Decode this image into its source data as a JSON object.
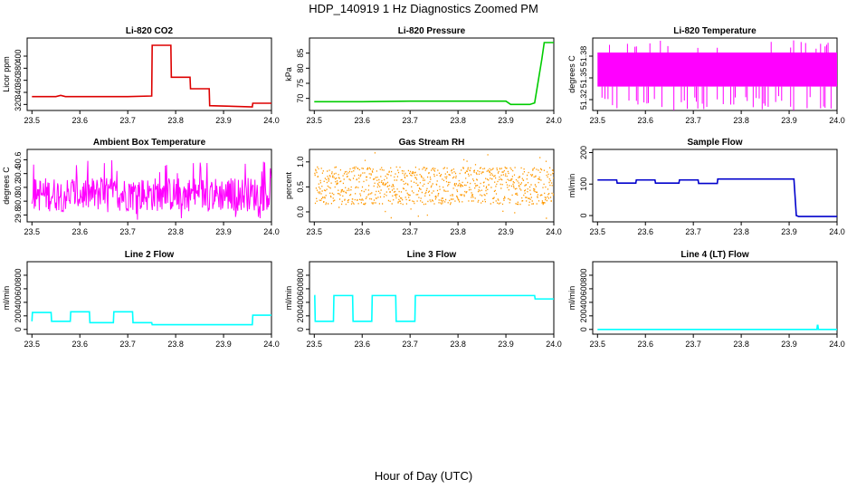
{
  "page": {
    "title": "HDP_140919  1 Hz Diagnostics Zoomed PM",
    "xlabel": "Hour of Day (UTC)"
  },
  "chart_data": [
    {
      "type": "line",
      "title": "Li-820 CO2",
      "ylabel": "Licor ppm",
      "color": "#dd0000",
      "xlim": [
        23.49,
        24.0
      ],
      "ylim": [
        310,
        430
      ],
      "xticks": [
        "23.5",
        "23.6",
        "23.7",
        "23.8",
        "23.9",
        "24.0"
      ],
      "yticks": [
        "320",
        "340",
        "360",
        "380",
        "400"
      ],
      "series": [
        {
          "x": [
            23.5,
            23.55,
            23.56,
            23.57,
            23.7,
            23.75,
            23.751,
            23.79,
            23.791,
            23.83,
            23.831,
            23.87,
            23.871,
            23.96,
            23.961,
            24.0
          ],
          "y": [
            333,
            333,
            335,
            333,
            333,
            334,
            418,
            418,
            365,
            365,
            346,
            346,
            318,
            316,
            322,
            322
          ]
        }
      ]
    },
    {
      "type": "line",
      "title": "Li-820 Pressure",
      "ylabel": "kPa",
      "color": "#00cc00",
      "xlim": [
        23.49,
        24.0
      ],
      "ylim": [
        66,
        90
      ],
      "xticks": [
        "23.5",
        "23.6",
        "23.7",
        "23.8",
        "23.9",
        "24.0"
      ],
      "yticks": [
        "70",
        "75",
        "80",
        "85"
      ],
      "series": [
        {
          "x": [
            23.5,
            23.6,
            23.7,
            23.9,
            23.91,
            23.95,
            23.96,
            23.975,
            23.98,
            24.0
          ],
          "y": [
            68.9,
            68.9,
            69.1,
            69.1,
            68.0,
            68.0,
            68.5,
            83,
            88.5,
            88.5
          ]
        }
      ]
    },
    {
      "type": "line",
      "title": "Li-820 Temperature",
      "ylabel": "degrees C",
      "color": "#ff00ff",
      "xlim": [
        23.49,
        24.0
      ],
      "ylim": [
        51.305,
        51.405
      ],
      "xticks": [
        "23.5",
        "23.6",
        "23.7",
        "23.8",
        "23.9",
        "24.0"
      ],
      "yticks": [
        "51.32",
        "51.35",
        "51.38"
      ],
      "series": [
        {
          "x": [
            23.5,
            24.0
          ],
          "y": [
            51.36,
            51.36
          ]
        }
      ]
    },
    {
      "type": "line",
      "title": "Ambient Box Temperature",
      "ylabel": "degrees C",
      "color": "#ff00ff",
      "xlim": [
        23.49,
        24.0
      ],
      "ylim": [
        29.7,
        30.75
      ],
      "xticks": [
        "23.5",
        "23.6",
        "23.7",
        "23.8",
        "23.9",
        "24.0"
      ],
      "yticks": [
        "29.8",
        "30.0",
        "30.2",
        "30.4",
        "30.6"
      ],
      "series": [
        {
          "x": [
            23.5,
            24.0
          ],
          "y": [
            30.1,
            30.1
          ]
        }
      ]
    },
    {
      "type": "scatter",
      "title": "Gas Stream RH",
      "ylabel": "percent",
      "color": "#ff9900",
      "xlim": [
        23.49,
        24.0
      ],
      "ylim": [
        -0.2,
        1.25
      ],
      "xticks": [
        "23.5",
        "23.6",
        "23.7",
        "23.8",
        "23.9",
        "24.0"
      ],
      "yticks": [
        "0.0",
        "0.5",
        "1.0"
      ],
      "series": [
        {
          "x": [
            23.5,
            24.0
          ],
          "y": [
            0.45,
            0.45
          ]
        }
      ]
    },
    {
      "type": "line",
      "title": "Sample Flow",
      "ylabel": "ml/min",
      "color": "#0000cc",
      "xlim": [
        23.49,
        24.0
      ],
      "ylim": [
        -20,
        210
      ],
      "xticks": [
        "23.5",
        "23.6",
        "23.7",
        "23.8",
        "23.9",
        "24.0"
      ],
      "yticks": [
        "0",
        "100",
        "200"
      ],
      "series": [
        {
          "x": [
            23.5,
            23.54,
            23.541,
            23.58,
            23.581,
            23.62,
            23.621,
            23.67,
            23.671,
            23.71,
            23.711,
            23.75,
            23.751,
            23.91,
            23.915,
            23.92,
            24.0
          ],
          "y": [
            113,
            113,
            103,
            103,
            113,
            113,
            103,
            103,
            113,
            113,
            102,
            102,
            116,
            116,
            0,
            -3,
            -3
          ]
        }
      ]
    },
    {
      "type": "line",
      "title": "Line 2 Flow",
      "ylabel": "ml/min",
      "color": "#00ffff",
      "xlim": [
        23.49,
        24.0
      ],
      "ylim": [
        -70,
        1000
      ],
      "xticks": [
        "23.5",
        "23.6",
        "23.7",
        "23.8",
        "23.9",
        "24.0"
      ],
      "yticks": [
        "0",
        "200",
        "400",
        "600",
        "800"
      ],
      "series": [
        {
          "x": [
            23.5,
            23.501,
            23.54,
            23.541,
            23.58,
            23.581,
            23.62,
            23.621,
            23.67,
            23.671,
            23.71,
            23.711,
            23.75,
            23.751,
            23.96,
            23.961,
            24.0
          ],
          "y": [
            120,
            250,
            250,
            120,
            120,
            260,
            260,
            100,
            100,
            260,
            260,
            100,
            100,
            70,
            70,
            210,
            210
          ]
        }
      ]
    },
    {
      "type": "line",
      "title": "Line 3 Flow",
      "ylabel": "ml/min",
      "color": "#00ffff",
      "xlim": [
        23.49,
        24.0
      ],
      "ylim": [
        -70,
        1000
      ],
      "xticks": [
        "23.5",
        "23.6",
        "23.7",
        "23.8",
        "23.9",
        "24.0"
      ],
      "yticks": [
        "0",
        "200",
        "400",
        "600",
        "800"
      ],
      "series": [
        {
          "x": [
            23.5,
            23.501,
            23.502,
            23.54,
            23.541,
            23.58,
            23.581,
            23.62,
            23.621,
            23.67,
            23.671,
            23.71,
            23.711,
            23.96,
            23.961,
            24.0
          ],
          "y": [
            500,
            500,
            120,
            120,
            500,
            500,
            120,
            120,
            500,
            500,
            120,
            120,
            500,
            500,
            450,
            450
          ]
        }
      ]
    },
    {
      "type": "line",
      "title": "Line 4 (LT) Flow",
      "ylabel": "ml/min",
      "color": "#00ffff",
      "xlim": [
        23.49,
        24.0
      ],
      "ylim": [
        -70,
        1000
      ],
      "xticks": [
        "23.5",
        "23.6",
        "23.7",
        "23.8",
        "23.9",
        "24.0"
      ],
      "yticks": [
        "0",
        "200",
        "400",
        "600",
        "800"
      ],
      "series": [
        {
          "x": [
            23.5,
            23.958,
            23.959,
            23.96,
            23.961,
            24.0
          ],
          "y": [
            0,
            0,
            60,
            60,
            0,
            0
          ]
        }
      ]
    }
  ]
}
